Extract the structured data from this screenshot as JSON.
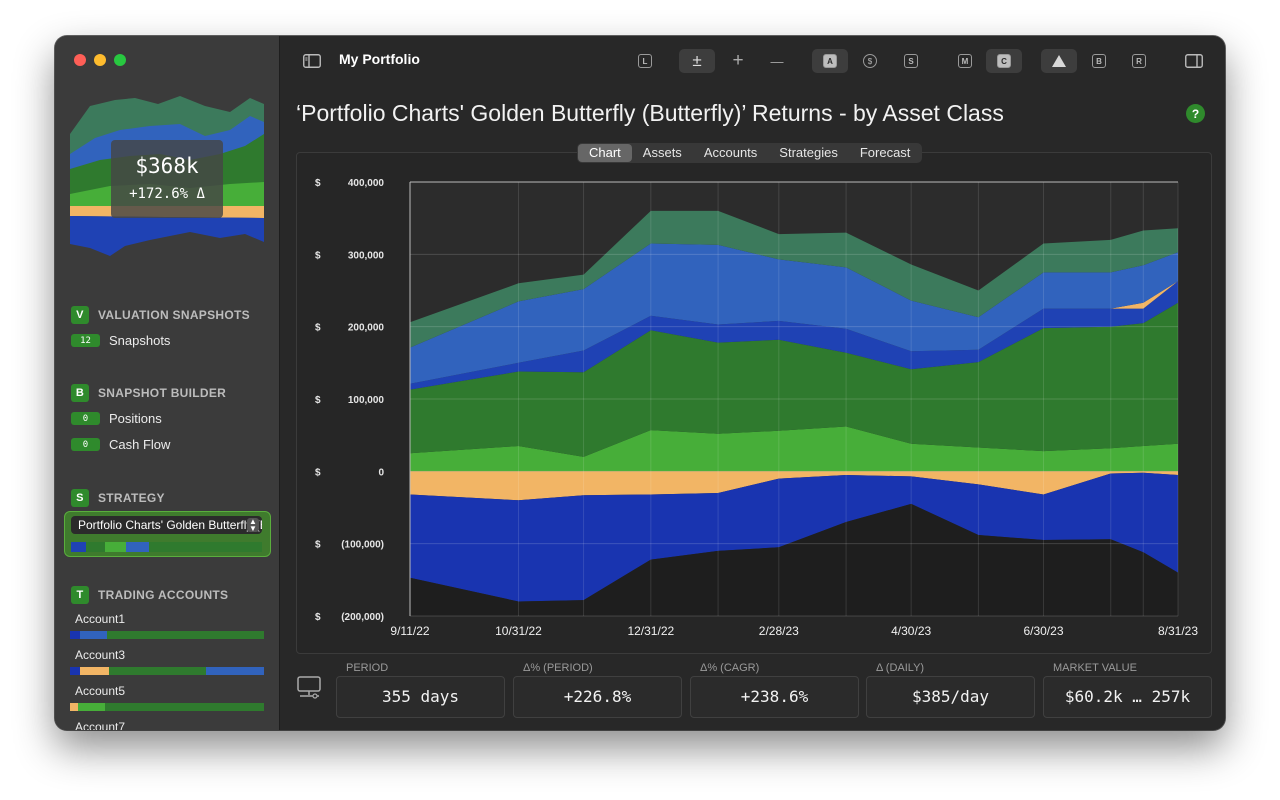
{
  "sidebar": {
    "summary": {
      "value": "$368k",
      "delta": "+172.6% Δ"
    },
    "sections": {
      "valuation": {
        "letter": "V",
        "title": "VALUATION SNAPSHOTS",
        "items": [
          {
            "count": "12",
            "label": "Snapshots"
          }
        ]
      },
      "builder": {
        "letter": "B",
        "title": "SNAPSHOT BUILDER",
        "items": [
          {
            "count": "0",
            "label": "Positions"
          },
          {
            "count": "0",
            "label": "Cash Flow"
          }
        ]
      },
      "strategy": {
        "letter": "S",
        "title": "STRATEGY",
        "selected": "Portfolio Charts' Golden Butterfly (Butterfly)"
      },
      "trading": {
        "letter": "T",
        "title": "TRADING ACCOUNTS",
        "accounts": [
          "Account1",
          "Account3",
          "Account5",
          "Account7"
        ]
      }
    }
  },
  "toolbar": {
    "title": "My Portfolio",
    "buttons": {
      "L": "L",
      "plusminus": "±",
      "plus": "+",
      "minus": "—",
      "A": "A",
      "dollar": "$",
      "S": "S",
      "M": "M",
      "C": "C",
      "B": "B",
      "R": "R"
    }
  },
  "page_title": "‘Portfolio Charts' Golden Butterfly (Butterfly)’ Returns - by Asset Class",
  "help": "?",
  "tabs": [
    {
      "label": "Chart",
      "active": true
    },
    {
      "label": "Assets",
      "active": false
    },
    {
      "label": "Accounts",
      "active": false
    },
    {
      "label": "Strategies",
      "active": false
    },
    {
      "label": "Forecast",
      "active": false
    }
  ],
  "colors": {
    "dark_green": "#2f7a2e",
    "light_green": "#47ae39",
    "teal_green": "#3c7a5c",
    "blue": "#3163bd",
    "royal_blue": "#1f42b4",
    "navy": "#1934b0",
    "orange": "#f2b565",
    "dark_fill": "#1e1e1e"
  },
  "chart_data": {
    "type": "area",
    "stacked": true,
    "x": [
      "2022-09-11",
      "2022-10-31",
      "2022-11-30",
      "2022-12-31",
      "2023-01-31",
      "2023-02-28",
      "2023-03-31",
      "2023-04-30",
      "2023-05-31",
      "2023-06-30",
      "2023-07-31",
      "2023-08-15",
      "2023-08-31"
    ],
    "x_tick_labels": [
      "9/11/22",
      "10/31/22",
      "12/31/22",
      "2/28/23",
      "4/30/23",
      "6/30/23",
      "8/31/23"
    ],
    "x_ticks": [
      "2022-09-11",
      "2022-10-31",
      "2022-12-31",
      "2023-02-28",
      "2023-04-30",
      "2023-06-30",
      "2023-08-31"
    ],
    "y_tick_labels": [
      {
        "cur": "$",
        "num": "400,000"
      },
      {
        "cur": "$",
        "num": "300,000"
      },
      {
        "cur": "$",
        "num": "200,000"
      },
      {
        "cur": "$",
        "num": "100,000"
      },
      {
        "cur": "$",
        "num": "0"
      },
      {
        "cur": "$",
        "num": "(100,000)"
      },
      {
        "cur": "$",
        "num": "(200,000)"
      }
    ],
    "ylim": [
      -200000,
      400000
    ],
    "grid": true,
    "positive_series": [
      {
        "color": "#47ae39",
        "values": [
          25000,
          35000,
          20000,
          57000,
          52000,
          56000,
          62000,
          38000,
          33000,
          28000,
          32000,
          35000,
          38000
        ]
      },
      {
        "color": "#2f7a2e",
        "values": [
          88000,
          103000,
          117000,
          138000,
          126000,
          126000,
          102000,
          103000,
          118000,
          170000,
          168000,
          170000,
          195000
        ]
      },
      {
        "color": "#1f42b4",
        "values": [
          8000,
          12000,
          30000,
          20000,
          25000,
          26000,
          33000,
          25000,
          17000,
          27000,
          25000,
          20000,
          30000
        ]
      },
      {
        "color": "#f2b565",
        "values": [
          0,
          0,
          0,
          0,
          0,
          0,
          0,
          0,
          0,
          0,
          0,
          8000,
          0
        ]
      },
      {
        "color": "#3163bd",
        "values": [
          50000,
          85000,
          85000,
          100000,
          110000,
          85000,
          85000,
          70000,
          45000,
          50000,
          50000,
          52000,
          40000
        ]
      },
      {
        "color": "#3c7a5c",
        "values": [
          35000,
          25000,
          20000,
          45000,
          47000,
          35000,
          48000,
          50000,
          37000,
          40000,
          45000,
          48000,
          33000
        ]
      }
    ],
    "negative_series": [
      {
        "color": "#f2b565",
        "values": [
          -32000,
          -40000,
          -33000,
          -32000,
          -30000,
          -10000,
          -5000,
          -7000,
          -18000,
          -32000,
          -3000,
          -2000,
          -5000
        ]
      },
      {
        "color": "#1934b0",
        "values": [
          -115000,
          -140000,
          -145000,
          -90000,
          -80000,
          -95000,
          -65000,
          -38000,
          -70000,
          -63000,
          -91000,
          -110000,
          -135000
        ]
      },
      {
        "color": "#1e1e1e",
        "values": [
          -53000,
          -20000,
          -22000,
          -78000,
          -90000,
          -95000,
          -130000,
          -155000,
          -112000,
          -105000,
          -106000,
          -88000,
          -60000
        ]
      }
    ]
  },
  "stats": [
    {
      "label": "PERIOD",
      "value": "355 days"
    },
    {
      "label": "Δ% (PERIOD)",
      "value": "+226.8%"
    },
    {
      "label": "Δ% (CAGR)",
      "value": "+238.6%"
    },
    {
      "label": "Δ (DAILY)",
      "value": "$385/day"
    },
    {
      "label": "MARKET VALUE",
      "value": "$60.2k … 257k"
    }
  ]
}
